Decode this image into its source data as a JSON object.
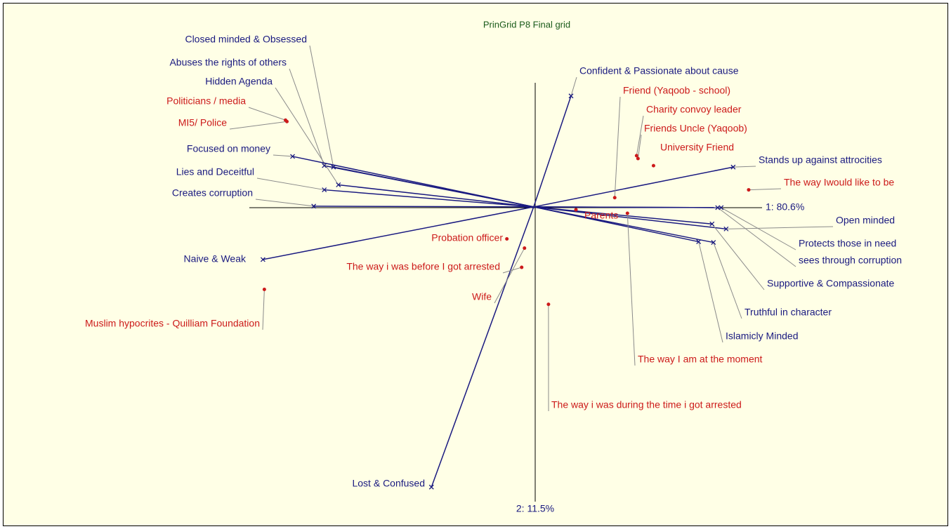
{
  "chart_data": {
    "type": "biplot",
    "title": "PrinGrid P8 Final grid",
    "xlabel": "1: 80.6%",
    "ylabel": "2: 11.5%",
    "xlim": [
      -1.88,
      1.47
    ],
    "ylim": [
      -1.1225,
      0.715
    ],
    "constructs": {
      "color": "#1a1a80",
      "labels": [
        "Closed minded & Obsessed",
        "Abuses the rights of others",
        "Hidden Agenda",
        "Focused on money",
        "Lies and Deceitful",
        "Creates corruption",
        "Naive & Weak",
        "Lost & Confused",
        "Confident & Passionate about cause",
        "Stands up against attrocities",
        "Open minded",
        "Protects those in need",
        "sees through corruption",
        "Supportive & Compassionate",
        "Truthful in character",
        "Islamicly Minded"
      ],
      "x": [
        -0.71,
        -0.7425,
        -0.6925,
        -0.855,
        -0.7425,
        -0.78,
        -0.96,
        -0.3625,
        0.1325,
        0.7075,
        0.6825,
        0.665,
        0.6525,
        0.6325,
        0.6375,
        0.585
      ],
      "y": [
        0.14,
        0.145,
        0.0775,
        0.1775,
        0.06,
        0.0025,
        -0.185,
        -0.985,
        0.39,
        0.14,
        -0.0775,
        -0.0025,
        -0.0025,
        -0.06,
        -0.125,
        -0.1225
      ]
    },
    "elements": {
      "color": "#cc1a1a",
      "labels": [
        "Politicians / media",
        "MI5/ Police",
        "Friend (Yaqoob - school)",
        "Charity convoy leader",
        "Friends Uncle (Yaqoob)",
        "University Friend",
        "The way Iwould like to be",
        "Parents",
        "The way I am at the moment",
        "Probation officer",
        "Wife",
        "The way i was before I got arrested",
        "Muslim hypocrites - Quilliam Foundation",
        "The way i was during the time i got arrested"
      ],
      "x": [
        -0.88,
        -0.875,
        0.2875,
        0.365,
        0.37,
        0.425,
        0.7625,
        0.15,
        0.3325,
        -0.095,
        -0.0325,
        -0.0425,
        -0.955,
        0.0525
      ],
      "y": [
        0.305,
        0.3,
        0.0325,
        0.18,
        0.17,
        0.145,
        0.06,
        -0.01,
        -0.0225,
        -0.1125,
        -0.145,
        -0.2125,
        -0.29,
        -0.3425
      ]
    }
  }
}
